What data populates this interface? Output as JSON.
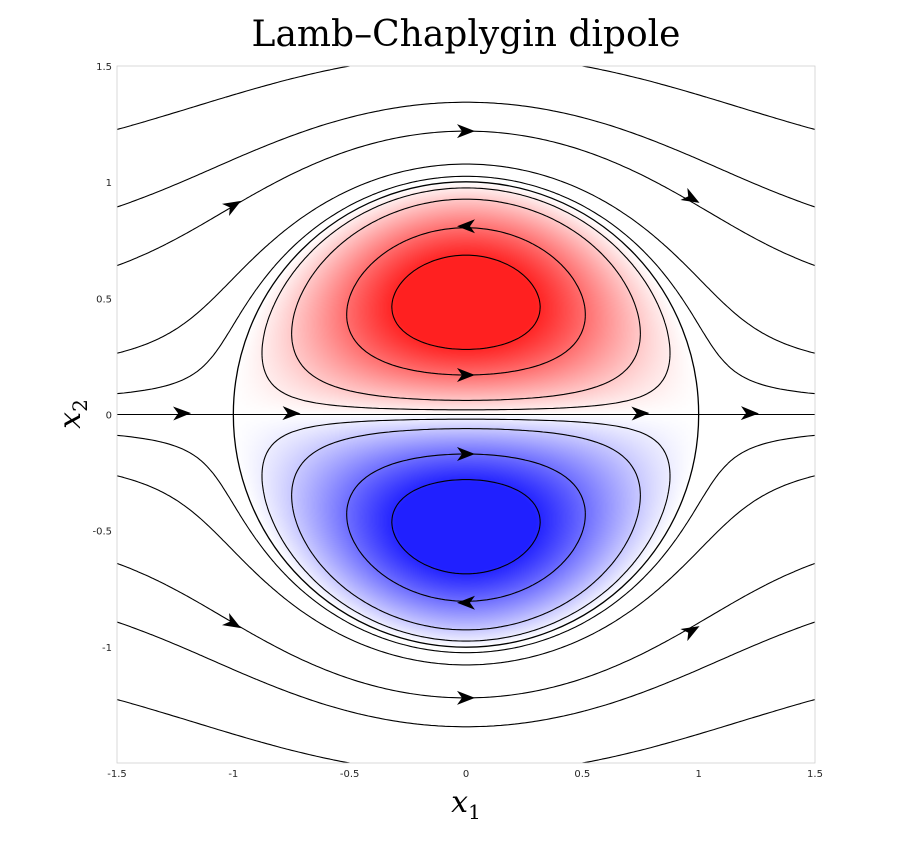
{
  "chart_data": {
    "type": "heatmap",
    "title": "Lamb–Chaplygin dipole",
    "xlabel": "x",
    "xlabel_sub": "1",
    "ylabel": "x",
    "ylabel_sub": "2",
    "xlim": [
      -1.5,
      1.5
    ],
    "ylim": [
      -1.5,
      1.5
    ],
    "xticks": [
      -1.5,
      -1,
      -0.5,
      0,
      0.5,
      1,
      1.5
    ],
    "yticks": [
      -1,
      -0.5,
      0,
      0.5,
      1,
      1.5
    ],
    "xtick_labels": [
      "-1.5",
      "-1",
      "-0.5",
      "0",
      "0.5",
      "1",
      "1.5"
    ],
    "ytick_labels": [
      "-1",
      "-0.5",
      "0",
      "0.5",
      "1",
      "1.5"
    ],
    "grid": false,
    "vortex": {
      "center": [
        0,
        0
      ],
      "radius": 1,
      "positive_color": "#ff2020",
      "negative_color": "#2020ff"
    },
    "streamline_levels": [
      -1.2,
      -0.9,
      -0.6,
      -0.4,
      -0.15,
      -0.05,
      0,
      0.05,
      0.15,
      0.4,
      0.6,
      0.9,
      1.2
    ],
    "colors": {
      "boundary": "#000000",
      "streamline": "#000000",
      "axes_box": "#d0d0d0"
    }
  }
}
